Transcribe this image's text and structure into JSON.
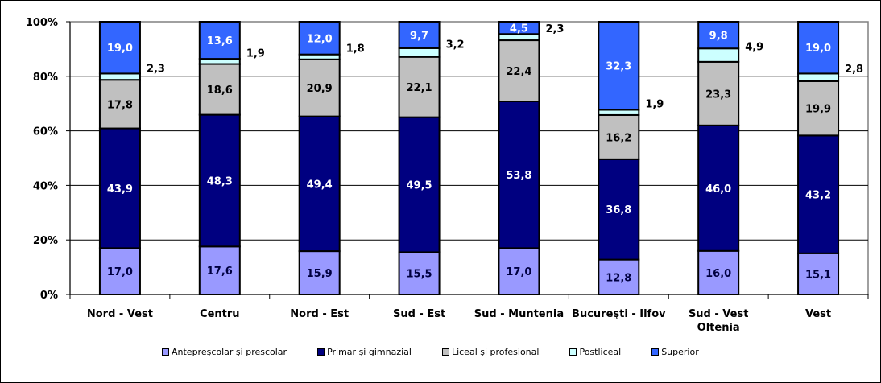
{
  "chart_data": {
    "type": "bar",
    "stacked": "percent",
    "title": "",
    "xlabel": "",
    "ylabel": "",
    "ylim": [
      0,
      100
    ],
    "yticks": [
      "0%",
      "20%",
      "40%",
      "60%",
      "80%",
      "100%"
    ],
    "ytick_values": [
      0,
      20,
      40,
      60,
      80,
      100
    ],
    "grid": true,
    "legend_position": "bottom",
    "categories": [
      "Nord - Vest",
      "Centru",
      "Nord - Est",
      "Sud - Est",
      "Sud - Muntenia",
      "Bucureşti - Ilfov",
      "Sud - Vest Oltenia",
      "Vest"
    ],
    "category_lines": [
      [
        "Nord - Vest"
      ],
      [
        "Centru"
      ],
      [
        "Nord - Est"
      ],
      [
        "Sud - Est"
      ],
      [
        "Sud - Muntenia"
      ],
      [
        "Bucureşti - Ilfov"
      ],
      [
        "Sud - Vest",
        "Oltenia"
      ],
      [
        "Vest"
      ]
    ],
    "series": [
      {
        "name": "Antepreşcolar şi preşcolar",
        "color": "#9999FF",
        "label_color": "#000040",
        "values": [
          17.0,
          17.6,
          15.9,
          15.5,
          17.0,
          12.8,
          16.0,
          15.1
        ],
        "labels": [
          "17,0",
          "17,6",
          "15,9",
          "15,5",
          "17,0",
          "12,8",
          "16,0",
          "15,1"
        ]
      },
      {
        "name": "Primar şi gimnazial",
        "color": "#000080",
        "label_color": "#FFFFFF",
        "values": [
          43.9,
          48.3,
          49.4,
          49.5,
          53.8,
          36.8,
          46.0,
          43.2
        ],
        "labels": [
          "43,9",
          "48,3",
          "49,4",
          "49,5",
          "53,8",
          "36,8",
          "46,0",
          "43,2"
        ]
      },
      {
        "name": "Liceal şi profesional",
        "color": "#C0C0C0",
        "label_color": "#000000",
        "values": [
          17.8,
          18.6,
          20.9,
          22.1,
          22.4,
          16.2,
          23.3,
          19.9
        ],
        "labels": [
          "17,8",
          "18,6",
          "20,9",
          "22,1",
          "22,4",
          "16,2",
          "23,3",
          "19,9"
        ]
      },
      {
        "name": "Postliceal",
        "color": "#CCFFFF",
        "label_color": "#000000",
        "label_outside": true,
        "values": [
          2.3,
          1.9,
          1.8,
          3.2,
          2.3,
          1.9,
          4.9,
          2.8
        ],
        "labels": [
          "2,3",
          "1,9",
          "1,8",
          "3,2",
          "2,3",
          "1,9",
          "4,9",
          "2,8"
        ]
      },
      {
        "name": "Superior",
        "color": "#3366FF",
        "label_color": "#FFFFFF",
        "values": [
          19.0,
          13.6,
          12.0,
          9.7,
          4.5,
          32.3,
          9.8,
          19.0
        ],
        "labels": [
          "19,0",
          "13,6",
          "12,0",
          "9,7",
          "4,5",
          "32,3",
          "9,8",
          "19,0"
        ]
      }
    ]
  }
}
